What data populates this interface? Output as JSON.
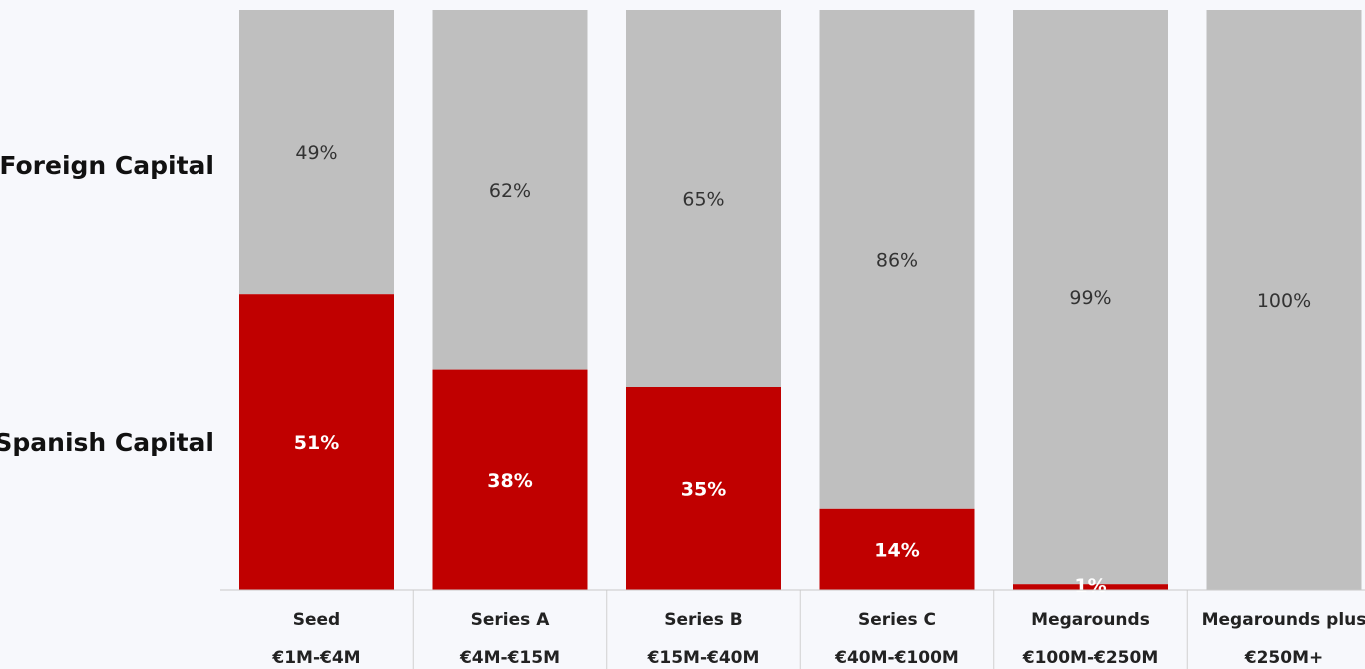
{
  "chart_data": {
    "type": "bar",
    "stacked": true,
    "percent_stacked": true,
    "categories": [
      "Seed",
      "Series A",
      "Series B",
      "Series C",
      "Megarounds",
      "Megarounds plus"
    ],
    "category_ranges": [
      "€1M-€4M",
      "€4M-€15M",
      "€15M-€40M",
      "€40M-€100M",
      "€100M-€250M",
      "€250M+"
    ],
    "series": [
      {
        "name": "Spanish Capital",
        "color": "#c00000",
        "values": [
          51,
          38,
          35,
          14,
          1,
          0
        ],
        "labels": [
          "51%",
          "38%",
          "35%",
          "14%",
          "1%",
          ""
        ]
      },
      {
        "name": "Foreign Capital",
        "color": "#bfbfbf",
        "values": [
          49,
          62,
          65,
          86,
          99,
          100
        ],
        "labels": [
          "49%",
          "62%",
          "65%",
          "86%",
          "99%",
          "100%"
        ]
      }
    ],
    "ylim": [
      0,
      100
    ],
    "grid": false,
    "legend": "left"
  }
}
